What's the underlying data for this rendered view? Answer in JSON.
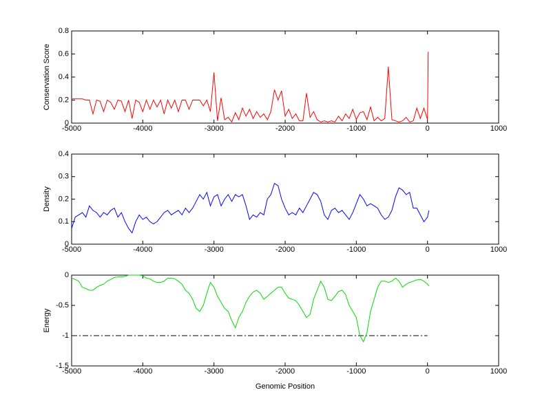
{
  "chart_data": [
    {
      "type": "line",
      "ylabel": "Conservation Score",
      "color": "#ff0000",
      "xlim": [
        -5000,
        1000
      ],
      "xticks": [
        -5000,
        -4000,
        -3000,
        -2000,
        -1000,
        0,
        1000
      ],
      "ylim": [
        0,
        0.8
      ],
      "yticks": [
        0,
        0.2,
        0.4,
        0.6,
        0.8
      ],
      "x": [
        -5000,
        -4950,
        -4900,
        -4850,
        -4800,
        -4750,
        -4700,
        -4650,
        -4600,
        -4550,
        -4500,
        -4450,
        -4400,
        -4350,
        -4300,
        -4250,
        -4200,
        -4150,
        -4100,
        -4050,
        -4000,
        -3950,
        -3900,
        -3850,
        -3800,
        -3750,
        -3700,
        -3650,
        -3600,
        -3550,
        -3500,
        -3450,
        -3400,
        -3350,
        -3300,
        -3250,
        -3200,
        -3150,
        -3100,
        -3050,
        -3000,
        -2950,
        -2900,
        -2850,
        -2800,
        -2750,
        -2700,
        -2650,
        -2600,
        -2550,
        -2500,
        -2450,
        -2400,
        -2350,
        -2300,
        -2250,
        -2200,
        -2150,
        -2100,
        -2050,
        -2000,
        -1950,
        -1900,
        -1850,
        -1800,
        -1750,
        -1700,
        -1650,
        -1600,
        -1550,
        -1500,
        -1450,
        -1400,
        -1350,
        -1300,
        -1250,
        -1200,
        -1150,
        -1100,
        -1050,
        -1000,
        -950,
        -900,
        -850,
        -800,
        -750,
        -700,
        -650,
        -600,
        -550,
        -500,
        -450,
        -400,
        -350,
        -300,
        -250,
        -200,
        -150,
        -100,
        -50,
        0,
        10
      ],
      "values": [
        0.21,
        0.21,
        0.21,
        0.21,
        0.2,
        0.2,
        0.08,
        0.2,
        0.19,
        0.1,
        0.2,
        0.18,
        0.12,
        0.2,
        0.19,
        0.1,
        0.2,
        0.04,
        0.2,
        0.18,
        0.1,
        0.2,
        0.12,
        0.2,
        0.14,
        0.2,
        0.08,
        0.2,
        0.13,
        0.2,
        0.1,
        0.2,
        0.2,
        0.12,
        0.2,
        0.2,
        0.2,
        0.15,
        0.2,
        0.1,
        0.44,
        0.02,
        0.22,
        0.03,
        0.05,
        0.01,
        0.09,
        0.03,
        0.13,
        0.06,
        0.12,
        0.04,
        0.1,
        0.05,
        0.08,
        0.03,
        0.1,
        0.29,
        0.2,
        0.28,
        0.06,
        0.12,
        0.04,
        0.08,
        0.02,
        0.02,
        0.26,
        0.05,
        0.1,
        0.03,
        0.01,
        0.02,
        0.01,
        0.02,
        0.01,
        0.06,
        0.02,
        0.08,
        0.04,
        0.12,
        0.03,
        0.09,
        0.1,
        0.03,
        0.14,
        0.02,
        0.05,
        0.02,
        0.04,
        0.49,
        0.03,
        0.02,
        0.01,
        0.02,
        0.05,
        0.01,
        0.02,
        0.13,
        0.04,
        0.13,
        0.03,
        0.62
      ]
    },
    {
      "type": "line",
      "ylabel": "Density",
      "color": "#0000ff",
      "xlim": [
        -5000,
        1000
      ],
      "xticks": [
        -5000,
        -4000,
        -3000,
        -2000,
        -1000,
        0,
        1000
      ],
      "ylim": [
        0,
        0.4
      ],
      "yticks": [
        0,
        0.1,
        0.2,
        0.3,
        0.4
      ],
      "x": [
        -5000,
        -4950,
        -4900,
        -4850,
        -4800,
        -4750,
        -4700,
        -4650,
        -4600,
        -4550,
        -4500,
        -4450,
        -4400,
        -4350,
        -4300,
        -4250,
        -4200,
        -4150,
        -4100,
        -4050,
        -4000,
        -3950,
        -3900,
        -3850,
        -3800,
        -3750,
        -3700,
        -3650,
        -3600,
        -3550,
        -3500,
        -3450,
        -3400,
        -3350,
        -3300,
        -3250,
        -3200,
        -3150,
        -3100,
        -3050,
        -3000,
        -2950,
        -2900,
        -2850,
        -2800,
        -2750,
        -2700,
        -2650,
        -2600,
        -2550,
        -2500,
        -2450,
        -2400,
        -2350,
        -2300,
        -2250,
        -2200,
        -2150,
        -2100,
        -2050,
        -2000,
        -1950,
        -1900,
        -1850,
        -1800,
        -1750,
        -1700,
        -1650,
        -1600,
        -1550,
        -1500,
        -1450,
        -1400,
        -1350,
        -1300,
        -1250,
        -1200,
        -1150,
        -1100,
        -1050,
        -1000,
        -950,
        -900,
        -850,
        -800,
        -750,
        -700,
        -650,
        -600,
        -550,
        -500,
        -450,
        -400,
        -350,
        -300,
        -250,
        -200,
        -150,
        -100,
        -50,
        0,
        20
      ],
      "values": [
        0.07,
        0.12,
        0.13,
        0.14,
        0.12,
        0.17,
        0.15,
        0.14,
        0.12,
        0.14,
        0.13,
        0.15,
        0.16,
        0.12,
        0.14,
        0.1,
        0.07,
        0.05,
        0.1,
        0.13,
        0.11,
        0.12,
        0.1,
        0.09,
        0.1,
        0.12,
        0.14,
        0.15,
        0.13,
        0.14,
        0.15,
        0.13,
        0.16,
        0.14,
        0.16,
        0.19,
        0.22,
        0.2,
        0.23,
        0.17,
        0.21,
        0.22,
        0.17,
        0.2,
        0.22,
        0.19,
        0.22,
        0.21,
        0.22,
        0.17,
        0.11,
        0.13,
        0.12,
        0.14,
        0.13,
        0.2,
        0.22,
        0.27,
        0.26,
        0.2,
        0.16,
        0.13,
        0.14,
        0.13,
        0.16,
        0.14,
        0.17,
        0.2,
        0.23,
        0.22,
        0.19,
        0.13,
        0.11,
        0.15,
        0.16,
        0.14,
        0.15,
        0.13,
        0.11,
        0.14,
        0.18,
        0.22,
        0.2,
        0.17,
        0.18,
        0.17,
        0.16,
        0.13,
        0.11,
        0.12,
        0.15,
        0.21,
        0.25,
        0.24,
        0.22,
        0.23,
        0.16,
        0.16,
        0.13,
        0.1,
        0.12,
        0.15
      ]
    },
    {
      "type": "line",
      "ylabel": "Energy",
      "xlabel": "Genomic Position",
      "color": "#00dd00",
      "xlim": [
        -5000,
        1000
      ],
      "xticks": [
        -5000,
        -4000,
        -3000,
        -2000,
        -1000,
        0,
        1000
      ],
      "ylim": [
        -1.5,
        0
      ],
      "yticks": [
        -1.5,
        -1,
        -0.5,
        0
      ],
      "reference_line": {
        "value": -1,
        "x": [
          -5000,
          0
        ],
        "color": "#000000"
      },
      "x": [
        -5000,
        -4950,
        -4900,
        -4850,
        -4800,
        -4750,
        -4700,
        -4650,
        -4600,
        -4550,
        -4500,
        -4450,
        -4400,
        -4350,
        -4300,
        -4250,
        -4200,
        -4150,
        -4100,
        -4050,
        -4000,
        -3950,
        -3900,
        -3850,
        -3800,
        -3750,
        -3700,
        -3650,
        -3600,
        -3550,
        -3500,
        -3450,
        -3400,
        -3350,
        -3300,
        -3250,
        -3200,
        -3150,
        -3100,
        -3050,
        -3000,
        -2950,
        -2900,
        -2850,
        -2800,
        -2750,
        -2700,
        -2650,
        -2600,
        -2550,
        -2500,
        -2450,
        -2400,
        -2350,
        -2300,
        -2250,
        -2200,
        -2150,
        -2100,
        -2050,
        -2000,
        -1950,
        -1900,
        -1850,
        -1800,
        -1750,
        -1700,
        -1650,
        -1600,
        -1550,
        -1500,
        -1450,
        -1400,
        -1350,
        -1300,
        -1250,
        -1200,
        -1150,
        -1100,
        -1050,
        -1000,
        -950,
        -900,
        -850,
        -800,
        -750,
        -700,
        -650,
        -600,
        -550,
        -500,
        -450,
        -400,
        -350,
        -300,
        -250,
        -200,
        -150,
        -100,
        -50,
        0,
        20
      ],
      "values": [
        -0.05,
        -0.07,
        -0.1,
        -0.2,
        -0.22,
        -0.25,
        -0.25,
        -0.2,
        -0.17,
        -0.15,
        -0.1,
        -0.07,
        -0.04,
        -0.03,
        -0.03,
        -0.02,
        0,
        0,
        0,
        0,
        -0.01,
        -0.05,
        -0.06,
        -0.1,
        -0.12,
        -0.12,
        -0.1,
        -0.05,
        -0.05,
        -0.06,
        -0.1,
        -0.15,
        -0.25,
        -0.3,
        -0.4,
        -0.55,
        -0.6,
        -0.5,
        -0.3,
        -0.12,
        -0.2,
        -0.35,
        -0.45,
        -0.55,
        -0.6,
        -0.75,
        -0.87,
        -0.7,
        -0.6,
        -0.45,
        -0.35,
        -0.28,
        -0.25,
        -0.3,
        -0.4,
        -0.35,
        -0.3,
        -0.25,
        -0.2,
        -0.2,
        -0.3,
        -0.38,
        -0.4,
        -0.42,
        -0.5,
        -0.6,
        -0.7,
        -0.65,
        -0.4,
        -0.25,
        -0.1,
        -0.2,
        -0.4,
        -0.42,
        -0.35,
        -0.27,
        -0.25,
        -0.32,
        -0.5,
        -0.6,
        -0.7,
        -1.0,
        -1.1,
        -0.95,
        -0.6,
        -0.4,
        -0.2,
        -0.1,
        -0.1,
        -0.12,
        -0.1,
        -0.05,
        -0.1,
        -0.2,
        -0.15,
        -0.12,
        -0.1,
        -0.08,
        -0.07,
        -0.1,
        -0.15,
        -0.18
      ]
    }
  ]
}
